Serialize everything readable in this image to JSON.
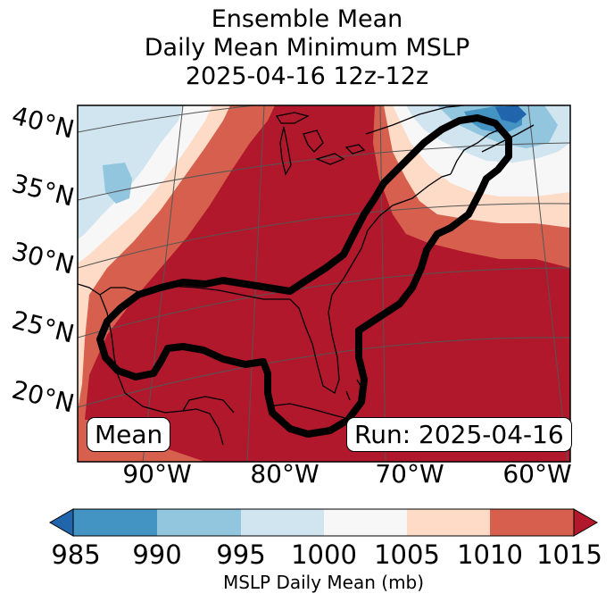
{
  "title": {
    "line1": "Ensemble Mean",
    "line2": "Daily Mean Minimum MSLP",
    "line3": "2025-04-16 12z-12z"
  },
  "map": {
    "lat_labels": [
      "40°N",
      "35°N",
      "30°N",
      "25°N",
      "20°N"
    ],
    "lon_labels": [
      "90°W",
      "80°W",
      "70°W",
      "60°W"
    ],
    "mean_box": "Mean",
    "run_box": "Run: 2025-04-16",
    "outline_color": "#000000"
  },
  "colorbar": {
    "bins": [
      {
        "from": 985,
        "to": 990,
        "color": "#4393c3"
      },
      {
        "from": 990,
        "to": 995,
        "color": "#92c5de"
      },
      {
        "from": 995,
        "to": 1000,
        "color": "#d1e5f0"
      },
      {
        "from": 1000,
        "to": 1005,
        "color": "#f7f7f7"
      },
      {
        "from": 1005,
        "to": 1010,
        "color": "#fddbc7"
      },
      {
        "from": 1010,
        "to": 1015,
        "color": "#d6604d"
      }
    ],
    "under_color": "#2166ac",
    "over_color": "#b2182b",
    "ticks": [
      "985",
      "990",
      "995",
      "1000",
      "1005",
      "1010",
      "1015"
    ],
    "label": "MSLP Daily Mean (mb)"
  }
}
